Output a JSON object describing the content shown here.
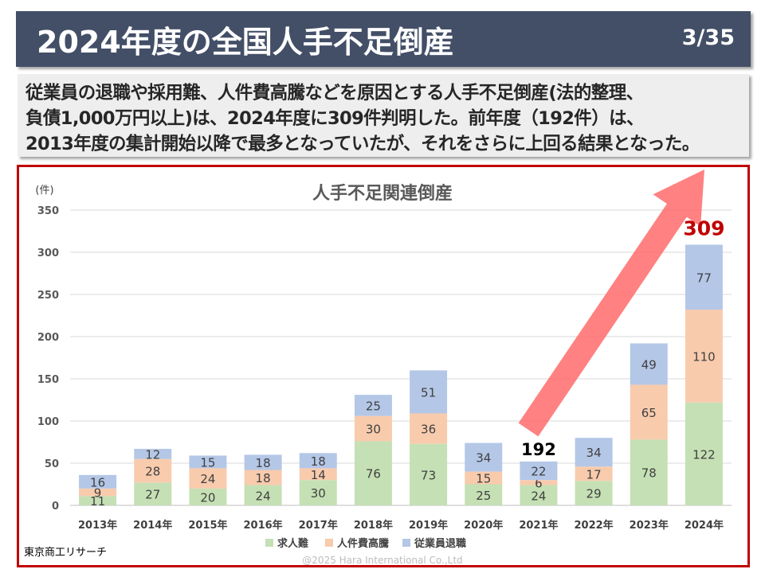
{
  "header": {
    "title": "2024年度の全国人手不足倒産",
    "page": "3/35"
  },
  "summary": {
    "lines": [
      "従業員の退職や採用難、人件費高騰などを原因とする人手不足倒産(法的整理、",
      "負債1,000万円以上)は、2024年度に309件判明した。前年度（192件）は、",
      "2013年度の集計開始以降で最多となっていたが、それをさらに上回る結果となった。"
    ]
  },
  "source": "東京商工リサーチ",
  "copyright": "@2025 Hara International Co.,Ltd",
  "colors": {
    "header_bg": "#434f67",
    "frame": "#c00000",
    "series_1": "#c5e0b4",
    "series_2": "#f8cbad",
    "series_3": "#b4c7e7",
    "arrow": "#ff6b6b",
    "callout_309": "#c00000"
  },
  "chart_data": {
    "type": "bar",
    "stacked": true,
    "title": "人手不足関連倒産",
    "ylabel": "(件)",
    "xlabel": "",
    "ylim": [
      0,
      350
    ],
    "yticks": [
      0,
      50,
      100,
      150,
      200,
      250,
      300,
      350
    ],
    "grid": true,
    "legend": "bottom",
    "categories": [
      "2013年",
      "2014年",
      "2015年",
      "2016年",
      "2017年",
      "2018年",
      "2019年",
      "2020年",
      "2021年",
      "2022年",
      "2023年",
      "2024年"
    ],
    "series": [
      {
        "name": "求人難",
        "values": [
          11,
          27,
          20,
          24,
          30,
          76,
          73,
          25,
          24,
          29,
          78,
          122
        ]
      },
      {
        "name": "人件費高騰",
        "values": [
          9,
          28,
          24,
          18,
          14,
          30,
          36,
          15,
          6,
          17,
          65,
          110
        ]
      },
      {
        "name": "従業員退職",
        "values": [
          16,
          12,
          15,
          18,
          18,
          25,
          51,
          34,
          22,
          34,
          49,
          77
        ]
      }
    ],
    "annotations": [
      {
        "category": "2021年",
        "text": "192",
        "color": "#000000"
      },
      {
        "category": "2024年",
        "text": "309",
        "color": "#c00000"
      }
    ]
  }
}
